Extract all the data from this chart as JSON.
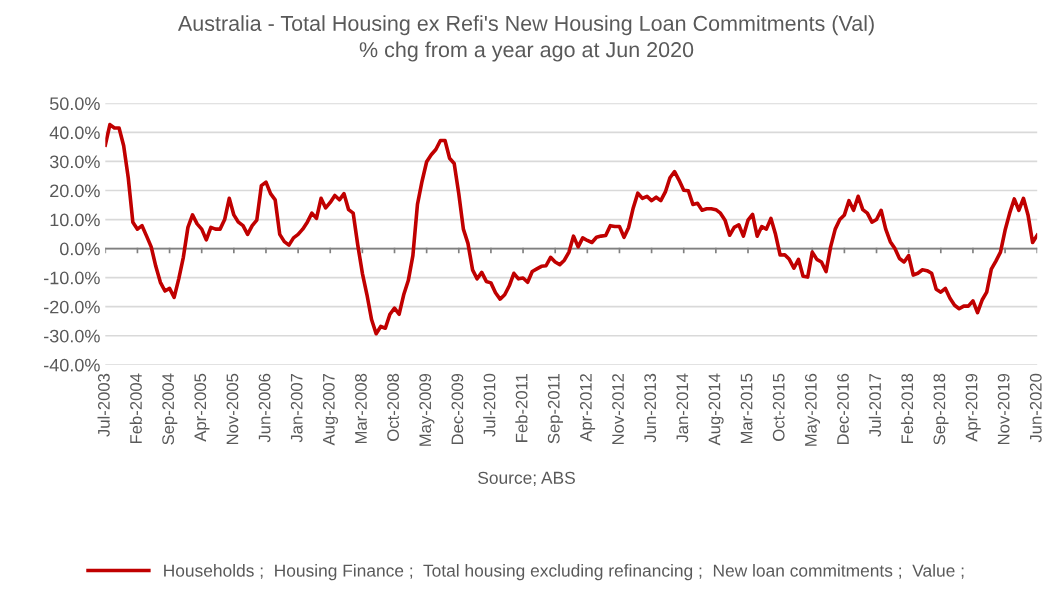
{
  "chart_data": {
    "type": "line",
    "title": "Australia - Total Housing ex Refi's New Housing Loan Commitments (Val)\n% chg from a year ago at Jun 2020",
    "categories": [
      "Jul-2003",
      null,
      null,
      null,
      null,
      null,
      null,
      "Feb-2004",
      null,
      null,
      null,
      null,
      null,
      null,
      "Sep-2004",
      null,
      null,
      null,
      null,
      null,
      null,
      "Apr-2005",
      null,
      null,
      null,
      null,
      null,
      null,
      "Nov-2005",
      null,
      null,
      null,
      null,
      null,
      null,
      "Jun-2006",
      null,
      null,
      null,
      null,
      null,
      null,
      "Jan-2007",
      null,
      null,
      null,
      null,
      null,
      null,
      "Aug-2007",
      null,
      null,
      null,
      null,
      null,
      null,
      "Mar-2008",
      null,
      null,
      null,
      null,
      null,
      null,
      "Oct-2008",
      null,
      null,
      null,
      null,
      null,
      null,
      "May-2009",
      null,
      null,
      null,
      null,
      null,
      null,
      "Dec-2009",
      null,
      null,
      null,
      null,
      null,
      null,
      "Jul-2010",
      null,
      null,
      null,
      null,
      null,
      null,
      "Feb-2011",
      null,
      null,
      null,
      null,
      null,
      null,
      "Sep-2011",
      null,
      null,
      null,
      null,
      null,
      null,
      "Apr-2012",
      null,
      null,
      null,
      null,
      null,
      null,
      "Nov-2012",
      null,
      null,
      null,
      null,
      null,
      null,
      "Jun-2013",
      null,
      null,
      null,
      null,
      null,
      null,
      "Jan-2014",
      null,
      null,
      null,
      null,
      null,
      null,
      "Aug-2014",
      null,
      null,
      null,
      null,
      null,
      null,
      "Mar-2015",
      null,
      null,
      null,
      null,
      null,
      null,
      "Oct-2015",
      null,
      null,
      null,
      null,
      null,
      null,
      "May-2016",
      null,
      null,
      null,
      null,
      null,
      null,
      "Dec-2016",
      null,
      null,
      null,
      null,
      null,
      null,
      "Jul-2017",
      null,
      null,
      null,
      null,
      null,
      null,
      "Feb-2018",
      null,
      null,
      null,
      null,
      null,
      null,
      "Sep-2018",
      null,
      null,
      null,
      null,
      null,
      null,
      "Apr-2019",
      null,
      null,
      null,
      null,
      null,
      null,
      "Nov-2019",
      null,
      null,
      null,
      null,
      null,
      null,
      "Jun-2020"
    ],
    "series": [
      {
        "name": "Households ;  Housing Finance ;  Total housing excluding refinancing ;  New loan commitments ;  Value ;",
        "color": "#c00000",
        "values": [
          35.6,
          42.7,
          41.5,
          41.5,
          35.4,
          24.4,
          9.1,
          6.7,
          7.9,
          4.3,
          0.6,
          -6.1,
          -11.6,
          -14.6,
          -13.7,
          -16.8,
          -10.4,
          -3.0,
          7.3,
          11.6,
          8.5,
          6.7,
          3.0,
          7.3,
          6.7,
          6.7,
          10.0,
          17.3,
          11.6,
          9.1,
          7.9,
          4.9,
          7.9,
          9.8,
          21.7,
          22.9,
          18.9,
          16.8,
          4.9,
          2.4,
          1.2,
          3.7,
          4.9,
          6.7,
          9.1,
          12.2,
          10.4,
          17.3,
          14.0,
          15.9,
          18.3,
          16.8,
          18.9,
          13.4,
          12.2,
          1.2,
          -8.5,
          -15.9,
          -24.4,
          -29.3,
          -26.8,
          -27.4,
          -22.6,
          -20.5,
          -22.6,
          -15.9,
          -11.0,
          -2.4,
          15.2,
          23.2,
          29.9,
          32.3,
          34.1,
          37.2,
          37.2,
          31.1,
          29.3,
          18.9,
          6.7,
          1.8,
          -7.3,
          -10.4,
          -8.2,
          -11.3,
          -11.8,
          -15.2,
          -17.4,
          -15.9,
          -12.8,
          -8.5,
          -10.4,
          -10.1,
          -11.6,
          -7.9,
          -7.0,
          -6.1,
          -5.9,
          -3.0,
          -4.6,
          -5.5,
          -4.0,
          -1.2,
          4.3,
          0.6,
          3.7,
          2.8,
          2.1,
          3.9,
          4.3,
          4.5,
          7.9,
          7.6,
          7.6,
          3.9,
          7.3,
          14.0,
          19.1,
          17.3,
          18.0,
          16.5,
          17.7,
          16.5,
          19.5,
          24.4,
          26.5,
          23.5,
          20.1,
          19.9,
          15.2,
          15.6,
          13.2,
          13.7,
          13.7,
          13.4,
          12.2,
          9.8,
          4.6,
          7.3,
          8.2,
          4.3,
          9.8,
          11.8,
          4.3,
          7.6,
          6.7,
          10.4,
          4.9,
          -2.2,
          -2.1,
          -3.7,
          -6.7,
          -3.7,
          -9.5,
          -9.8,
          -1.2,
          -3.7,
          -4.6,
          -7.9,
          0.6,
          6.7,
          10.0,
          11.6,
          16.5,
          13.2,
          18.0,
          13.4,
          12.2,
          9.1,
          10.0,
          13.2,
          6.7,
          2.4,
          0.0,
          -3.4,
          -4.6,
          -2.4,
          -9.1,
          -8.5,
          -7.3,
          -7.6,
          -8.5,
          -14.0,
          -15.0,
          -13.7,
          -17.1,
          -19.5,
          -20.7,
          -19.8,
          -19.8,
          -18.0,
          -22.0,
          -17.7,
          -15.0,
          -7.1,
          -4.3,
          -1.2,
          6.3,
          12.2,
          17.1,
          13.2,
          17.3,
          11.6,
          2.1,
          4.6
        ]
      }
    ],
    "ylim": [
      -40,
      50
    ],
    "yticks": [
      {
        "value": -40,
        "label": "-40.0%"
      },
      {
        "value": -30,
        "label": "-30.0%"
      },
      {
        "value": -20,
        "label": "-20.0%"
      },
      {
        "value": -10,
        "label": "-10.0%"
      },
      {
        "value": 0,
        "label": "0.0%"
      },
      {
        "value": 10,
        "label": "10.0%"
      },
      {
        "value": 20,
        "label": "20.0%"
      },
      {
        "value": 30,
        "label": "30.0%"
      },
      {
        "value": 40,
        "label": "40.0%"
      },
      {
        "value": 50,
        "label": "50.0%"
      }
    ],
    "grid": "y",
    "legend": "bottom",
    "line_style": "solid",
    "annotations": [
      "Source; ABS"
    ]
  }
}
